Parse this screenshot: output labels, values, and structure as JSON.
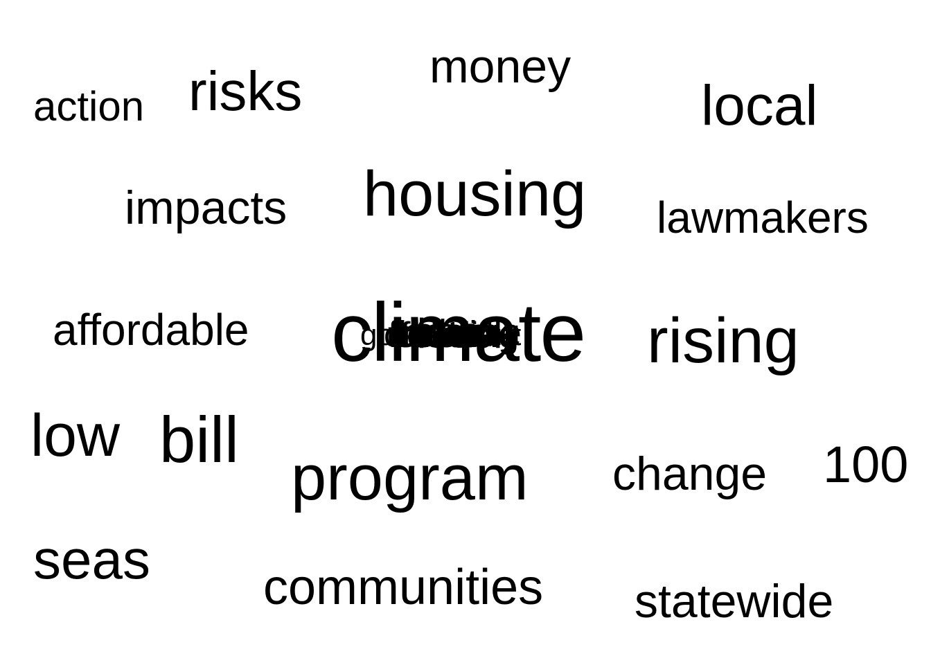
{
  "words": {
    "action": "action",
    "risks": "risks",
    "money": "money",
    "local": "local",
    "impacts": "impacts",
    "housing": "housing",
    "lawmakers": "lawmakers",
    "affordable": "affordable",
    "climate": "climate",
    "rising": "rising",
    "low": "low",
    "bill": "bill",
    "program": "program",
    "change": "change",
    "hundred": "100",
    "seas": "seas",
    "communities": "communities",
    "statewide": "statewide"
  },
  "overlapping_words": [
    "government",
    "income",
    "state",
    "flooding",
    "funding",
    "sea",
    "level",
    "coastal",
    "million",
    "residents"
  ],
  "colors": {
    "text": "#000000",
    "background": "#ffffff"
  }
}
